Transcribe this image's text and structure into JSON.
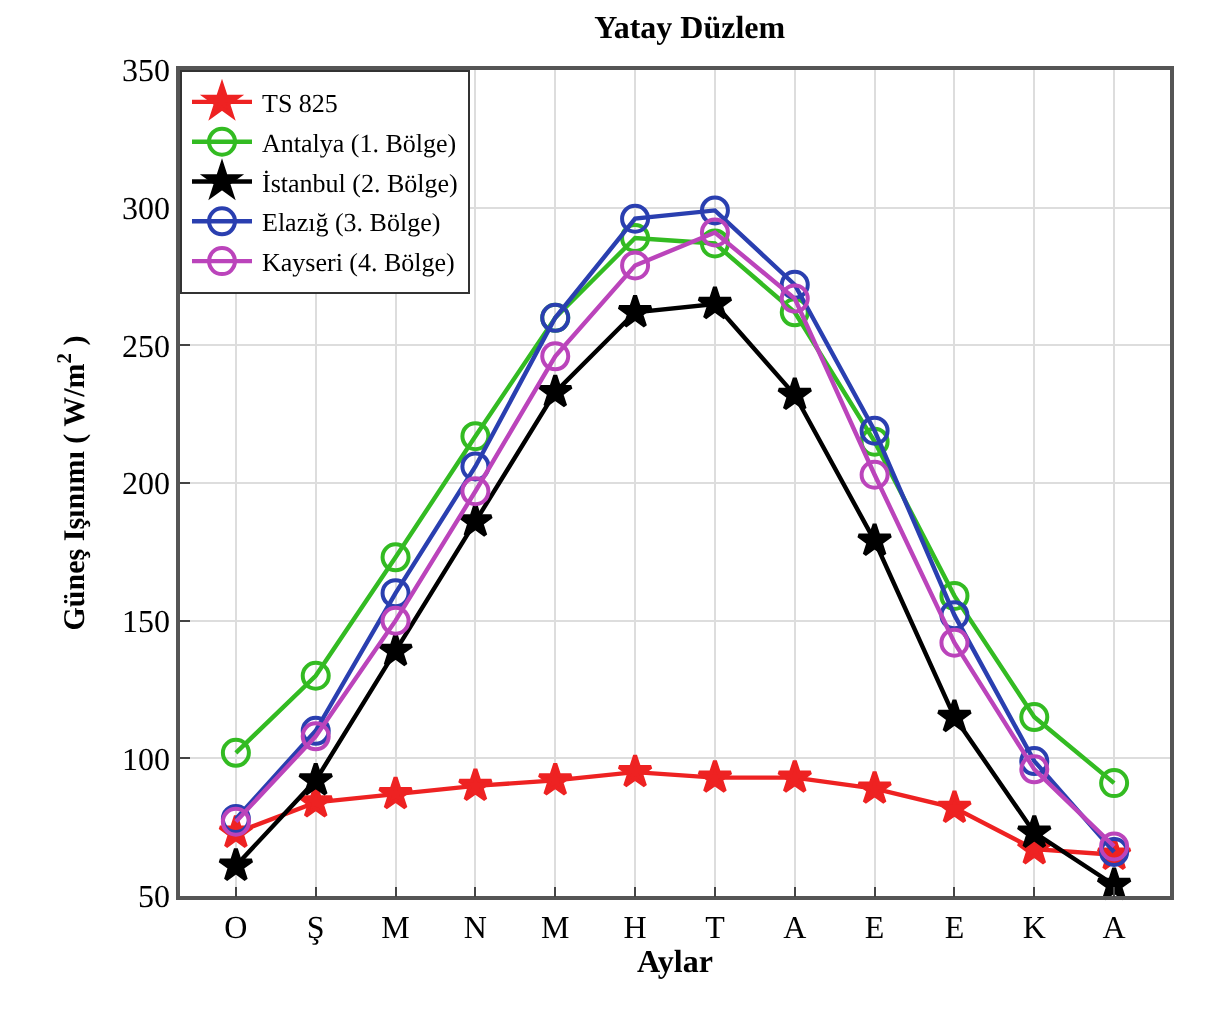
{
  "chart_data": {
    "type": "line",
    "title": "Yatay Düzlem",
    "xlabel": "Aylar",
    "ylabel": "Güneş Işınımı ( W/m$^{2}$ )",
    "categories": [
      "O",
      "Ş",
      "M",
      "N",
      "M",
      "H",
      "T",
      "A",
      "E",
      "E",
      "K",
      "A"
    ],
    "ylim": [
      50,
      350
    ],
    "yticks": [
      50,
      100,
      150,
      200,
      250,
      300,
      350
    ],
    "grid": true,
    "legend": "top left",
    "series": [
      {
        "name": "TS 825",
        "color": "#ee2222",
        "marker": "star",
        "values": [
          73,
          84,
          87,
          90,
          92,
          95,
          93,
          93,
          89,
          82,
          67,
          65
        ]
      },
      {
        "name": "Antalya (1. Bölge)",
        "color": "#33bb22",
        "marker": "circle",
        "values": [
          102,
          130,
          173,
          217,
          260,
          289,
          287,
          262,
          215,
          159,
          115,
          91
        ]
      },
      {
        "name": "İstanbul (2. Bölge)",
        "color": "#000000",
        "marker": "star",
        "values": [
          61,
          92,
          139,
          186,
          233,
          262,
          265,
          232,
          179,
          115,
          73,
          54
        ]
      },
      {
        "name": "Elazığ (3. Bölge)",
        "color": "#2a3fb0",
        "marker": "circle",
        "values": [
          78,
          110,
          160,
          206,
          260,
          296,
          299,
          272,
          219,
          152,
          99,
          66
        ]
      },
      {
        "name": "Kayseri (4. Bölge)",
        "color": "#bb44bb",
        "marker": "circle",
        "values": [
          77,
          108,
          150,
          197,
          246,
          279,
          291,
          267,
          203,
          142,
          96,
          68
        ]
      }
    ]
  }
}
